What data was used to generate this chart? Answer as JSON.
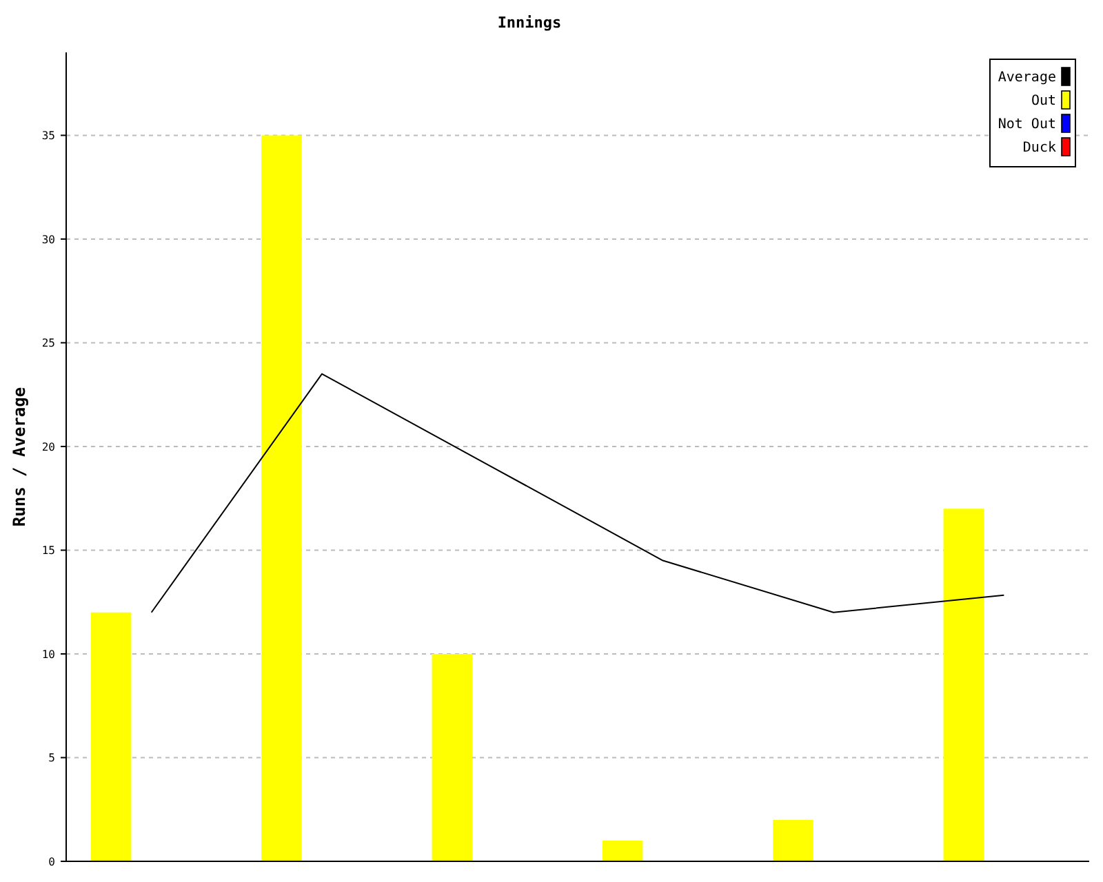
{
  "chart_data": {
    "type": "bar",
    "title": "Innings",
    "ylabel": "Runs / Average",
    "categories": [
      null,
      null,
      null,
      null,
      null,
      null
    ],
    "series": [
      {
        "name": "Average",
        "type": "line",
        "color": "#000000",
        "values": [
          12,
          23.5,
          19,
          14.5,
          12,
          12.83
        ]
      },
      {
        "name": "Out",
        "color": "#ffff00",
        "values": [
          12,
          35,
          10,
          1,
          2,
          17
        ]
      },
      {
        "name": "Not Out",
        "color": "#0000ff",
        "values": [
          null,
          null,
          null,
          null,
          null,
          null
        ]
      },
      {
        "name": "Duck",
        "color": "#ff0000",
        "values": [
          null,
          null,
          null,
          null,
          null,
          null
        ]
      }
    ],
    "ylim": [
      0,
      39
    ],
    "yticks": [
      0,
      5,
      10,
      15,
      20,
      25,
      30,
      35
    ],
    "grid": "y",
    "legend": "top right",
    "line_style": "solid",
    "marker": "none"
  }
}
